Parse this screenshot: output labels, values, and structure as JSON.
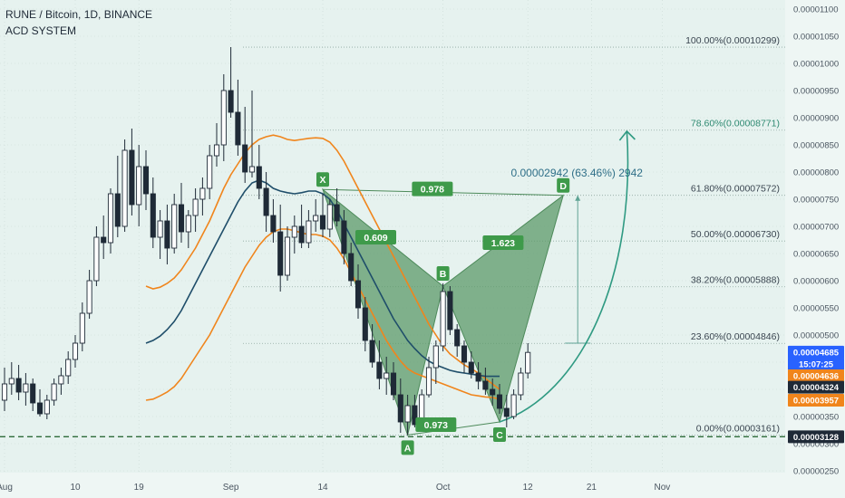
{
  "header": {
    "title": "RUNE / Bitcoin, 1D, BINANCE",
    "indicator": "ACD SYSTEM"
  },
  "colors": {
    "background": "#e6f2ef",
    "axis_bg": "#eef6f4",
    "candle": "#1f2a37",
    "ema_orange": "#f0851c",
    "ema_blue": "#1f4e6a",
    "pattern_fill": "#5c9a6a",
    "label_green": "#3e9a4a",
    "fib_green": "#2f8a72",
    "grid": "#c9d9d4",
    "current_price": "#2962ff",
    "support_dash": "#2e6b3a"
  },
  "chart_data": {
    "type": "candlestick",
    "symbol": "RUNE / Bitcoin",
    "timeframe": "1D",
    "exchange": "BINANCE",
    "ylim": [
      2.5e-06,
      1.11e-05
    ],
    "y_ticks": [
      "0.00000250",
      "0.00000300",
      "0.00000350",
      "0.00000400",
      "0.00000450",
      "0.00000500",
      "0.00000550",
      "0.00000600",
      "0.00000650",
      "0.00000700",
      "0.00000750",
      "0.00000800",
      "0.00000850",
      "0.00000900",
      "0.00000950",
      "0.00001000",
      "0.00001050",
      "0.00001100"
    ],
    "x_ticks": [
      {
        "label": "Aug",
        "day": 0
      },
      {
        "label": "10",
        "day": 10
      },
      {
        "label": "19",
        "day": 19
      },
      {
        "label": "Sep",
        "day": 32
      },
      {
        "label": "14",
        "day": 45
      },
      {
        "label": "Oct",
        "day": 62
      },
      {
        "label": "12",
        "day": 74
      },
      {
        "label": "21",
        "day": 83
      },
      {
        "label": "Nov",
        "day": 93
      }
    ],
    "candles": [
      {
        "o": 3.8,
        "h": 4.4,
        "l": 3.6,
        "c": 4.1
      },
      {
        "o": 4.1,
        "h": 4.5,
        "l": 3.9,
        "c": 4.2
      },
      {
        "o": 4.2,
        "h": 4.45,
        "l": 3.8,
        "c": 3.95
      },
      {
        "o": 3.95,
        "h": 4.3,
        "l": 3.7,
        "c": 4.1
      },
      {
        "o": 4.1,
        "h": 4.2,
        "l": 3.6,
        "c": 3.75
      },
      {
        "o": 3.75,
        "h": 4.0,
        "l": 3.5,
        "c": 3.55
      },
      {
        "o": 3.55,
        "h": 3.9,
        "l": 3.45,
        "c": 3.8
      },
      {
        "o": 3.8,
        "h": 4.2,
        "l": 3.7,
        "c": 4.1
      },
      {
        "o": 4.1,
        "h": 4.4,
        "l": 3.9,
        "c": 4.25
      },
      {
        "o": 4.25,
        "h": 4.7,
        "l": 4.1,
        "c": 4.55
      },
      {
        "o": 4.55,
        "h": 5.0,
        "l": 4.4,
        "c": 4.85
      },
      {
        "o": 4.85,
        "h": 5.6,
        "l": 4.7,
        "c": 5.4
      },
      {
        "o": 5.4,
        "h": 6.2,
        "l": 5.3,
        "c": 6.0
      },
      {
        "o": 6.0,
        "h": 7.0,
        "l": 5.9,
        "c": 6.8
      },
      {
        "o": 6.8,
        "h": 7.2,
        "l": 6.4,
        "c": 6.7
      },
      {
        "o": 6.7,
        "h": 7.7,
        "l": 6.5,
        "c": 7.6
      },
      {
        "o": 7.6,
        "h": 8.3,
        "l": 6.8,
        "c": 7.0
      },
      {
        "o": 7.0,
        "h": 8.6,
        "l": 6.9,
        "c": 8.4
      },
      {
        "o": 8.4,
        "h": 8.8,
        "l": 7.2,
        "c": 7.4
      },
      {
        "o": 7.4,
        "h": 8.5,
        "l": 7.0,
        "c": 8.1
      },
      {
        "o": 8.1,
        "h": 8.4,
        "l": 7.3,
        "c": 7.6
      },
      {
        "o": 7.6,
        "h": 7.9,
        "l": 6.6,
        "c": 6.8
      },
      {
        "o": 6.8,
        "h": 7.3,
        "l": 6.4,
        "c": 7.1
      },
      {
        "o": 7.1,
        "h": 7.4,
        "l": 6.3,
        "c": 6.6
      },
      {
        "o": 6.6,
        "h": 7.6,
        "l": 6.5,
        "c": 7.4
      },
      {
        "o": 7.4,
        "h": 7.8,
        "l": 6.7,
        "c": 6.9
      },
      {
        "o": 6.9,
        "h": 7.3,
        "l": 6.6,
        "c": 7.2
      },
      {
        "o": 7.2,
        "h": 7.7,
        "l": 6.9,
        "c": 7.5
      },
      {
        "o": 7.5,
        "h": 7.9,
        "l": 7.2,
        "c": 7.7
      },
      {
        "o": 7.7,
        "h": 8.5,
        "l": 7.5,
        "c": 8.3
      },
      {
        "o": 8.3,
        "h": 8.9,
        "l": 8.1,
        "c": 8.5
      },
      {
        "o": 8.5,
        "h": 9.8,
        "l": 8.2,
        "c": 9.5
      },
      {
        "o": 9.5,
        "h": 10.3,
        "l": 9.0,
        "c": 9.1
      },
      {
        "o": 9.1,
        "h": 9.7,
        "l": 8.3,
        "c": 8.5
      },
      {
        "o": 8.5,
        "h": 9.2,
        "l": 7.8,
        "c": 8.0
      },
      {
        "o": 8.0,
        "h": 9.5,
        "l": 7.9,
        "c": 8.1
      },
      {
        "o": 8.1,
        "h": 8.5,
        "l": 7.5,
        "c": 7.7
      },
      {
        "o": 7.7,
        "h": 8.0,
        "l": 6.9,
        "c": 7.2
      },
      {
        "o": 7.2,
        "h": 7.5,
        "l": 6.7,
        "c": 6.9
      },
      {
        "o": 6.9,
        "h": 7.4,
        "l": 5.8,
        "c": 6.1
      },
      {
        "o": 6.1,
        "h": 7.0,
        "l": 6.0,
        "c": 6.8
      },
      {
        "o": 6.8,
        "h": 7.2,
        "l": 6.5,
        "c": 7.0
      },
      {
        "o": 7.0,
        "h": 7.4,
        "l": 6.6,
        "c": 6.7
      },
      {
        "o": 6.7,
        "h": 7.3,
        "l": 6.6,
        "c": 7.1
      },
      {
        "o": 7.1,
        "h": 7.5,
        "l": 6.9,
        "c": 7.2
      },
      {
        "o": 7.2,
        "h": 7.6,
        "l": 6.8,
        "c": 6.95
      },
      {
        "o": 6.95,
        "h": 7.5,
        "l": 6.8,
        "c": 7.4
      },
      {
        "o": 7.4,
        "h": 7.7,
        "l": 7.0,
        "c": 7.1
      },
      {
        "o": 7.1,
        "h": 7.3,
        "l": 6.3,
        "c": 6.5
      },
      {
        "o": 6.5,
        "h": 6.7,
        "l": 5.9,
        "c": 6.0
      },
      {
        "o": 6.0,
        "h": 6.3,
        "l": 5.3,
        "c": 5.5
      },
      {
        "o": 5.5,
        "h": 5.7,
        "l": 4.7,
        "c": 4.9
      },
      {
        "o": 4.9,
        "h": 5.2,
        "l": 4.4,
        "c": 4.5
      },
      {
        "o": 4.5,
        "h": 4.9,
        "l": 4.0,
        "c": 4.2
      },
      {
        "o": 4.2,
        "h": 4.6,
        "l": 3.9,
        "c": 4.3
      },
      {
        "o": 4.3,
        "h": 4.5,
        "l": 3.8,
        "c": 3.9
      },
      {
        "o": 3.9,
        "h": 4.2,
        "l": 3.2,
        "c": 3.4
      },
      {
        "o": 3.4,
        "h": 3.9,
        "l": 3.16,
        "c": 3.7
      },
      {
        "o": 3.7,
        "h": 3.9,
        "l": 3.3,
        "c": 3.35
      },
      {
        "o": 3.35,
        "h": 4.0,
        "l": 3.3,
        "c": 3.9
      },
      {
        "o": 3.9,
        "h": 4.6,
        "l": 3.85,
        "c": 4.4
      },
      {
        "o": 4.4,
        "h": 4.9,
        "l": 4.1,
        "c": 4.8
      },
      {
        "o": 4.8,
        "h": 5.95,
        "l": 4.7,
        "c": 5.8
      },
      {
        "o": 5.8,
        "h": 5.9,
        "l": 5.0,
        "c": 5.1
      },
      {
        "o": 5.1,
        "h": 5.2,
        "l": 4.6,
        "c": 4.8
      },
      {
        "o": 4.8,
        "h": 4.9,
        "l": 4.3,
        "c": 4.5
      },
      {
        "o": 4.5,
        "h": 4.7,
        "l": 4.2,
        "c": 4.3
      },
      {
        "o": 4.3,
        "h": 4.5,
        "l": 4.0,
        "c": 4.15
      },
      {
        "o": 4.15,
        "h": 4.4,
        "l": 3.9,
        "c": 4.0
      },
      {
        "o": 4.0,
        "h": 4.2,
        "l": 3.7,
        "c": 3.9
      },
      {
        "o": 3.9,
        "h": 4.1,
        "l": 3.55,
        "c": 3.65
      },
      {
        "o": 3.65,
        "h": 3.9,
        "l": 3.3,
        "c": 3.5
      },
      {
        "o": 3.5,
        "h": 4.0,
        "l": 3.45,
        "c": 3.9
      },
      {
        "o": 3.9,
        "h": 4.4,
        "l": 3.8,
        "c": 4.3
      },
      {
        "o": 4.3,
        "h": 4.85,
        "l": 4.2,
        "c": 4.68
      }
    ],
    "ema_orange_upper": [
      5.9,
      5.85,
      5.88,
      5.95,
      6.05,
      6.2,
      6.4,
      6.6,
      6.85,
      7.1,
      7.4,
      7.7,
      7.95,
      8.15,
      8.35,
      8.5,
      8.6,
      8.65,
      8.68,
      8.65,
      8.6,
      8.58,
      8.6,
      8.62,
      8.63,
      8.62,
      8.55,
      8.4,
      8.2,
      7.95,
      7.7,
      7.45,
      7.2,
      6.95,
      6.7,
      6.45,
      6.2,
      5.95,
      5.7,
      5.45,
      5.2,
      5.0,
      4.8,
      4.65,
      4.55,
      4.45,
      4.38,
      4.3,
      4.2,
      4.1,
      4.0
    ],
    "ema_orange_lower": [
      3.8,
      3.82,
      3.88,
      3.95,
      4.05,
      4.2,
      4.4,
      4.6,
      4.8,
      5.0,
      5.25,
      5.5,
      5.75,
      6.0,
      6.25,
      6.45,
      6.65,
      6.8,
      6.9,
      6.95,
      6.95,
      6.92,
      6.88,
      6.85,
      6.85,
      6.82,
      6.75,
      6.6,
      6.4,
      6.15,
      5.9,
      5.65,
      5.4,
      5.15,
      4.9,
      4.7,
      4.52,
      4.38,
      4.3,
      4.25,
      4.2,
      4.15,
      4.1,
      4.05,
      4.0,
      3.95,
      3.9,
      3.88,
      3.86,
      3.85,
      3.82
    ],
    "ema_blue": [
      4.85,
      4.9,
      4.98,
      5.1,
      5.25,
      5.45,
      5.7,
      5.95,
      6.2,
      6.45,
      6.7,
      6.95,
      7.2,
      7.45,
      7.65,
      7.8,
      7.85,
      7.8,
      7.7,
      7.65,
      7.62,
      7.6,
      7.62,
      7.65,
      7.65,
      7.6,
      7.5,
      7.3,
      7.05,
      6.8,
      6.55,
      6.3,
      6.05,
      5.8,
      5.55,
      5.3,
      5.1,
      4.9,
      4.75,
      4.62,
      4.52,
      4.45,
      4.4,
      4.35,
      4.32,
      4.3,
      4.28,
      4.26,
      4.24,
      4.24,
      4.24
    ],
    "ema_start_day": 20,
    "harmonic_pattern": {
      "points": [
        {
          "label": "X",
          "day": 45,
          "price": 7.68
        },
        {
          "label": "A",
          "day": 57,
          "price": 3.16
        },
        {
          "label": "B",
          "day": 62,
          "price": 5.9
        },
        {
          "label": "C",
          "day": 70,
          "price": 3.4
        },
        {
          "label": "D",
          "day": 79,
          "price": 7.57
        }
      ],
      "ratios": [
        {
          "label": "0.609",
          "day": 52.5,
          "price": 6.8
        },
        {
          "label": "1.623",
          "day": 70.5,
          "price": 6.7
        },
        {
          "label": "0.978",
          "day": 60.5,
          "price": 7.69
        },
        {
          "label": "0.973",
          "day": 61,
          "price": 3.35
        }
      ],
      "measure_label": "0.00002942 (63.46%) 2942",
      "projection_arrow": {
        "from_day": 70,
        "from_price": 3.4,
        "to_day": 88,
        "to_price": 8.75
      }
    },
    "fibonacci": [
      {
        "label": "100.00%(0.00010299)",
        "price": 10.299
      },
      {
        "label": "78.60%(0.00008771)",
        "price": 8.771
      },
      {
        "label": "61.80%(0.00007572)",
        "price": 7.572
      },
      {
        "label": "50.00%(0.00006730)",
        "price": 6.73
      },
      {
        "label": "38.20%(0.00005888)",
        "price": 5.888
      },
      {
        "label": "23.60%(0.00004846)",
        "price": 4.846
      },
      {
        "label": "0.00%(0.00003161)",
        "price": 3.161
      }
    ],
    "price_labels": [
      {
        "text": "0.00004685",
        "price": 4.685,
        "color": "#2962ff"
      },
      {
        "text": "15:07:25",
        "price": 4.47,
        "color": "#2962ff"
      },
      {
        "text": "0.00004636",
        "price": 4.25,
        "color": "#f0851c"
      },
      {
        "text": "0.00004324",
        "price": 4.04,
        "color": "#1f2a37"
      },
      {
        "text": "0.00003957",
        "price": 3.8,
        "color": "#f0851c"
      },
      {
        "text": "0.00003128",
        "price": 3.128,
        "color": "#1f2a37"
      }
    ],
    "support_level": 3.128
  }
}
